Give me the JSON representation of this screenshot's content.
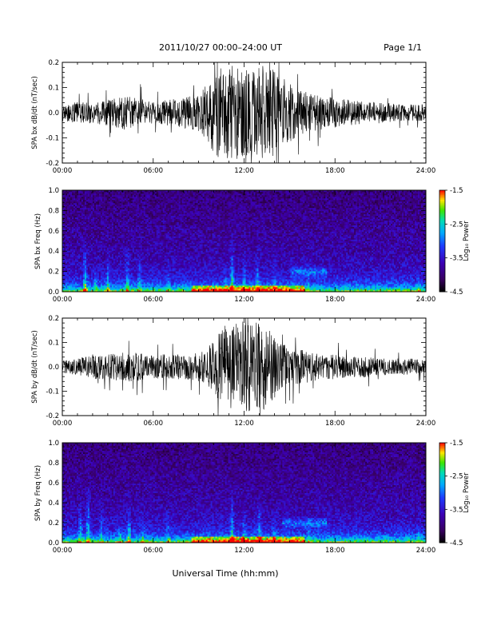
{
  "header": {
    "title": "2011/10/27   00:00–24:00 UT",
    "page": "Page 1/1"
  },
  "footer": {
    "xlabel": "Universal Time (hh:mm)"
  },
  "colors": {
    "trace": "#000000"
  },
  "chart_data": [
    {
      "type": "line",
      "ylabel": "SPA bx dB/dt (nT/sec)",
      "x_ticks": [
        "00:00",
        "06:00",
        "12:00",
        "18:00",
        "24:00"
      ],
      "y_ticks": [
        "-0.2",
        "-0.1",
        "0.0",
        "0.1",
        "0.2"
      ],
      "xlim": [
        0,
        24
      ],
      "ylim": [
        -0.2,
        0.2
      ],
      "x_unit": "hours UT",
      "series": [
        {
          "x": [
            0,
            1,
            2,
            3,
            4,
            5,
            6,
            7,
            8,
            9,
            9.5,
            10,
            10.5,
            11,
            11.5,
            12,
            12.5,
            13,
            13.5,
            14,
            14.5,
            15,
            16,
            17,
            18,
            19,
            20,
            21,
            22,
            23,
            24
          ],
          "y": [
            0.04,
            0.05,
            0.05,
            0.06,
            0.08,
            0.07,
            0.05,
            0.06,
            0.07,
            0.09,
            0.13,
            0.2,
            0.22,
            0.22,
            0.22,
            0.2,
            0.2,
            0.22,
            0.22,
            0.2,
            0.17,
            0.14,
            0.1,
            0.08,
            0.07,
            0.06,
            0.05,
            0.05,
            0.04,
            0.04,
            0.04
          ]
        }
      ]
    },
    {
      "type": "heatmap",
      "ylabel": "SPA bx Freq (Hz)",
      "x_ticks": [
        "00:00",
        "06:00",
        "12:00",
        "18:00",
        "24:00"
      ],
      "y_ticks": [
        "0.0",
        "0.2",
        "0.4",
        "0.6",
        "0.8",
        "1.0"
      ],
      "xlim": [
        0,
        24
      ],
      "ylim": [
        0,
        1
      ],
      "colorbar": {
        "label": "Log₁₀ Power",
        "ticks": [
          "-1.5",
          "-2.5",
          "-3.5",
          "-4.5"
        ],
        "range": [
          -4.5,
          -1.5
        ]
      },
      "bursts": [
        {
          "t": 1.5,
          "strength": 0.8,
          "extent": 0.55
        },
        {
          "t": 2.2,
          "strength": 0.45,
          "extent": 0.4
        },
        {
          "t": 3.0,
          "strength": 0.5,
          "extent": 0.45
        },
        {
          "t": 4.3,
          "strength": 0.7,
          "extent": 0.5
        },
        {
          "t": 5.1,
          "strength": 0.45,
          "extent": 0.4
        },
        {
          "t": 7.0,
          "strength": 0.35,
          "extent": 0.3
        },
        {
          "t": 10.8,
          "strength": 0.4,
          "extent": 0.35
        },
        {
          "t": 11.2,
          "strength": 0.85,
          "extent": 0.6
        },
        {
          "t": 12.0,
          "strength": 0.55,
          "extent": 0.45
        },
        {
          "t": 12.9,
          "strength": 0.6,
          "extent": 0.5
        },
        {
          "t": 14.0,
          "strength": 0.5,
          "extent": 0.4
        },
        {
          "t": 16.2,
          "strength": 0.4,
          "extent": 0.3
        },
        {
          "t": 23.5,
          "strength": 0.4,
          "extent": 0.2
        }
      ],
      "band": {
        "t_start": 15.0,
        "t_end": 17.5,
        "freq": 0.2
      }
    },
    {
      "type": "line",
      "ylabel": "SPA by dB/dt (nT/sec)",
      "x_ticks": [
        "00:00",
        "06:00",
        "12:00",
        "18:00",
        "24:00"
      ],
      "y_ticks": [
        "-0.2",
        "-0.1",
        "0.0",
        "0.1",
        "0.2"
      ],
      "xlim": [
        0,
        24
      ],
      "ylim": [
        -0.2,
        0.2
      ],
      "x_unit": "hours UT",
      "series": [
        {
          "x": [
            0,
            1,
            2,
            3,
            4,
            5,
            6,
            7,
            8,
            9,
            9.5,
            10,
            10.5,
            11,
            11.5,
            12,
            12.5,
            13,
            13.5,
            14,
            14.5,
            15,
            16,
            17,
            18,
            19,
            20,
            21,
            22,
            23,
            24
          ],
          "y": [
            0.03,
            0.04,
            0.06,
            0.06,
            0.07,
            0.07,
            0.06,
            0.06,
            0.06,
            0.07,
            0.08,
            0.13,
            0.18,
            0.22,
            0.22,
            0.22,
            0.22,
            0.22,
            0.2,
            0.15,
            0.12,
            0.1,
            0.08,
            0.06,
            0.06,
            0.05,
            0.05,
            0.04,
            0.04,
            0.04,
            0.04
          ]
        }
      ]
    },
    {
      "type": "heatmap",
      "ylabel": "SPA by Freq (Hz)",
      "x_ticks": [
        "00:00",
        "06:00",
        "12:00",
        "18:00",
        "24:00"
      ],
      "y_ticks": [
        "0.0",
        "0.2",
        "0.4",
        "0.6",
        "0.8",
        "1.0"
      ],
      "xlim": [
        0,
        24
      ],
      "ylim": [
        0,
        1
      ],
      "colorbar": {
        "label": "Log₁₀ Power",
        "ticks": [
          "-1.5",
          "-2.5",
          "-3.5",
          "-4.5"
        ],
        "range": [
          -4.5,
          -1.5
        ]
      },
      "bursts": [
        {
          "t": 1.2,
          "strength": 0.6,
          "extent": 0.5
        },
        {
          "t": 1.7,
          "strength": 0.85,
          "extent": 0.6
        },
        {
          "t": 2.6,
          "strength": 0.5,
          "extent": 0.4
        },
        {
          "t": 3.8,
          "strength": 0.45,
          "extent": 0.35
        },
        {
          "t": 4.4,
          "strength": 0.7,
          "extent": 0.5
        },
        {
          "t": 5.3,
          "strength": 0.45,
          "extent": 0.4
        },
        {
          "t": 7.0,
          "strength": 0.35,
          "extent": 0.35
        },
        {
          "t": 11.2,
          "strength": 0.8,
          "extent": 0.6
        },
        {
          "t": 12.0,
          "strength": 0.5,
          "extent": 0.45
        },
        {
          "t": 13.0,
          "strength": 0.6,
          "extent": 0.5
        },
        {
          "t": 14.0,
          "strength": 0.45,
          "extent": 0.4
        },
        {
          "t": 16.3,
          "strength": 0.4,
          "extent": 0.3
        },
        {
          "t": 23.5,
          "strength": 0.35,
          "extent": 0.2
        }
      ],
      "band": {
        "t_start": 14.5,
        "t_end": 17.5,
        "freq": 0.2
      }
    }
  ]
}
